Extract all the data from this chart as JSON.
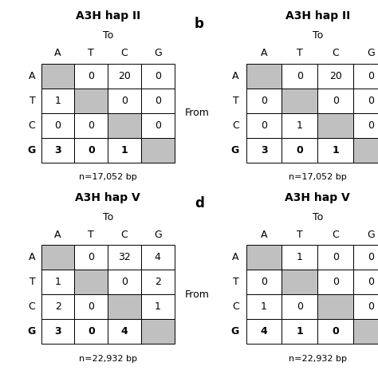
{
  "panels": [
    {
      "title": "A3H hap II",
      "label": "",
      "show_label": false,
      "show_from": false,
      "n_label": "n=17,052 bp",
      "matrix": [
        [
          null,
          0,
          20,
          0
        ],
        [
          1,
          null,
          0,
          0
        ],
        [
          0,
          0,
          null,
          0
        ],
        [
          3,
          0,
          1,
          null
        ]
      ],
      "col_headers": [
        "A",
        "T",
        "C",
        "G"
      ],
      "row_headers": [
        "A",
        "T",
        "C",
        "G"
      ],
      "to_label": "To"
    },
    {
      "title": "A3H hap II",
      "label": "b",
      "show_label": true,
      "show_from": true,
      "n_label": "n=17,052 bp",
      "matrix": [
        [
          null,
          0,
          20,
          0
        ],
        [
          0,
          null,
          0,
          0
        ],
        [
          0,
          1,
          null,
          0
        ],
        [
          3,
          0,
          1,
          null
        ]
      ],
      "col_headers": [
        "A",
        "T",
        "C",
        "G"
      ],
      "row_headers": [
        "A",
        "T",
        "C",
        "G"
      ],
      "to_label": "To"
    },
    {
      "title": "A3H hap V",
      "label": "",
      "show_label": false,
      "show_from": false,
      "n_label": "n=22,932 bp",
      "matrix": [
        [
          null,
          0,
          32,
          4
        ],
        [
          1,
          null,
          0,
          2
        ],
        [
          2,
          0,
          null,
          1
        ],
        [
          3,
          0,
          4,
          null
        ]
      ],
      "col_headers": [
        "A",
        "T",
        "C",
        "G"
      ],
      "row_headers": [
        "A",
        "T",
        "C",
        "G"
      ],
      "to_label": "To"
    },
    {
      "title": "A3H hap V",
      "label": "d",
      "show_label": true,
      "show_from": true,
      "n_label": "n=22,932 bp",
      "matrix": [
        [
          null,
          1,
          0,
          0
        ],
        [
          0,
          null,
          0,
          0
        ],
        [
          1,
          0,
          null,
          0
        ],
        [
          4,
          1,
          0,
          null
        ]
      ],
      "col_headers": [
        "A",
        "T",
        "C",
        "G"
      ],
      "row_headers": [
        "A",
        "T",
        "C",
        "G"
      ],
      "to_label": "To"
    }
  ],
  "gray_color": "#c0c0c0",
  "white_color": "#ffffff",
  "cell_text_color": "#000000",
  "title_fontsize": 10,
  "header_fontsize": 9,
  "cell_fontsize": 9,
  "label_fontsize": 12,
  "n_fontsize": 8
}
